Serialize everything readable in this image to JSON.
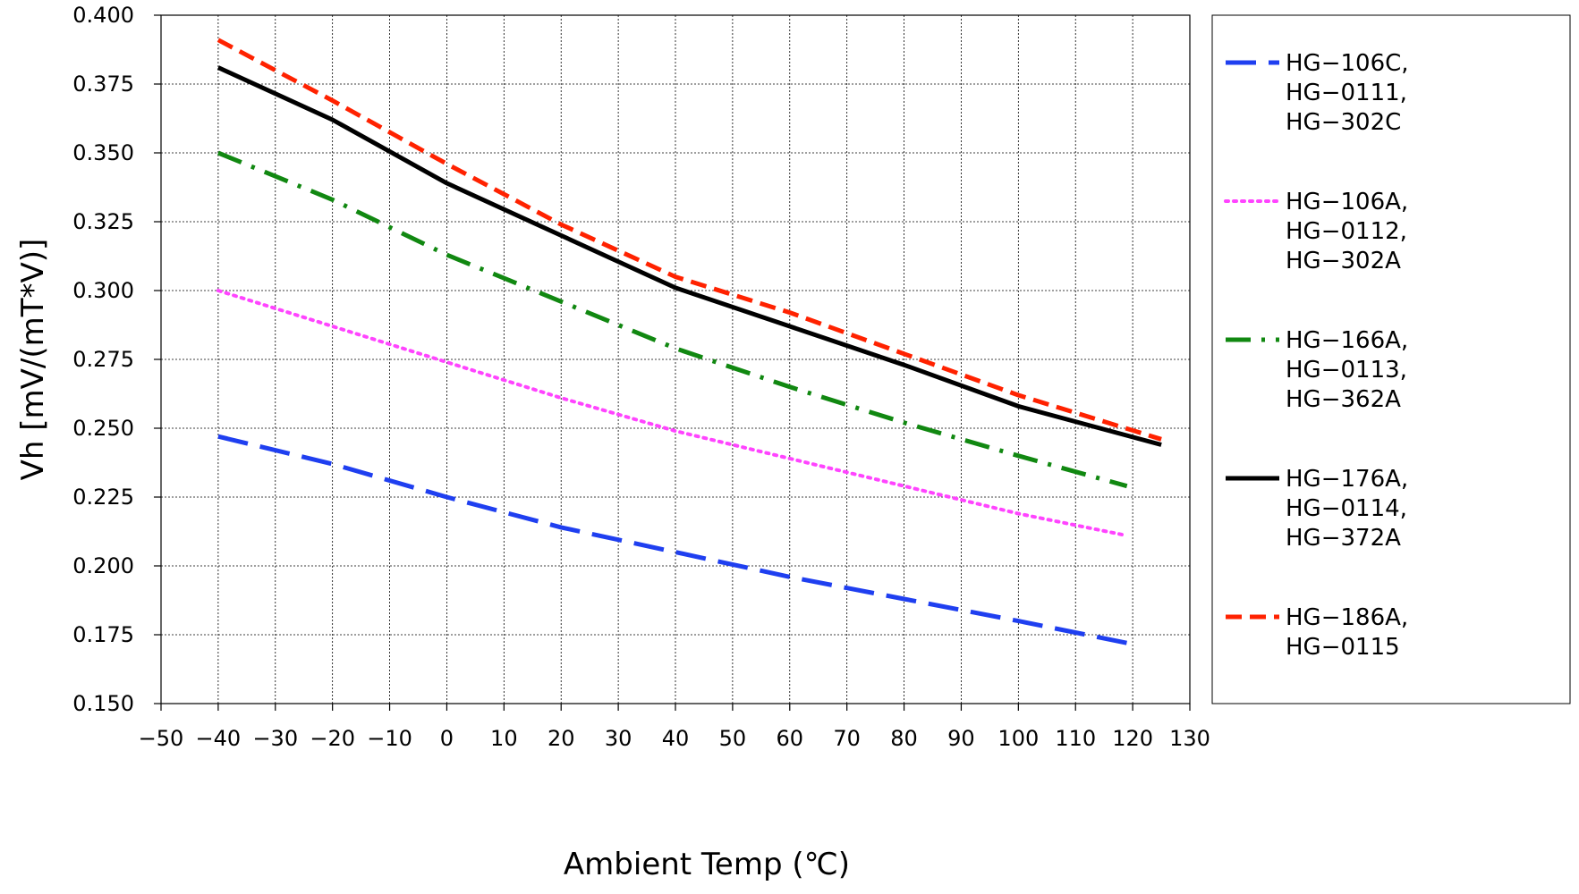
{
  "chart_data": {
    "type": "line",
    "title": "",
    "xlabel": "Ambient Temp (℃)",
    "ylabel": "Vh [mV/(mT*V)]",
    "xlim": [
      -50,
      130
    ],
    "ylim": [
      0.15,
      0.4
    ],
    "x_ticks": [
      -50,
      -40,
      -30,
      -20,
      -10,
      0,
      10,
      20,
      30,
      40,
      50,
      60,
      70,
      80,
      90,
      100,
      110,
      120,
      130
    ],
    "x_tick_labels": [
      "−50",
      "−40",
      "−30",
      "−20",
      "−10",
      "0",
      "10",
      "20",
      "30",
      "40",
      "50",
      "60",
      "70",
      "80",
      "90",
      "100",
      "110",
      "120",
      "130"
    ],
    "y_ticks": [
      0.15,
      0.175,
      0.2,
      0.225,
      0.25,
      0.275,
      0.3,
      0.325,
      0.35,
      0.375,
      0.4
    ],
    "y_tick_labels": [
      "0.150",
      "0.175",
      "0.200",
      "0.225",
      "0.250",
      "0.275",
      "0.300",
      "0.325",
      "0.350",
      "0.375",
      "0.400"
    ],
    "grid": true,
    "legend_position": "right",
    "series": [
      {
        "name": "HG−106C, HG−0111, HG−302C",
        "legend_lines": [
          "HG−106C,",
          "HG−0111,",
          "HG−302C"
        ],
        "color": "#1f3ff0",
        "style": "long-dash",
        "x": [
          -40,
          -20,
          0,
          20,
          40,
          60,
          80,
          100,
          119
        ],
        "y": [
          0.247,
          0.237,
          0.225,
          0.214,
          0.205,
          0.196,
          0.188,
          0.18,
          0.172
        ]
      },
      {
        "name": "HG−106A, HG−0112, HG−302A",
        "legend_lines": [
          "HG−106A,",
          "HG−0112,",
          "HG−302A"
        ],
        "color": "#ff44ff",
        "style": "dotted",
        "x": [
          -40,
          -20,
          0,
          20,
          40,
          60,
          80,
          100,
          119
        ],
        "y": [
          0.3,
          0.287,
          0.274,
          0.261,
          0.249,
          0.239,
          0.229,
          0.219,
          0.211
        ]
      },
      {
        "name": "HG−166A, HG−0113, HG−362A",
        "legend_lines": [
          "HG−166A,",
          "HG−0113,",
          "HG−362A"
        ],
        "color": "#118811",
        "style": "dash-dot",
        "x": [
          -40,
          -20,
          0,
          20,
          40,
          60,
          80,
          100,
          119
        ],
        "y": [
          0.35,
          0.333,
          0.313,
          0.296,
          0.279,
          0.265,
          0.252,
          0.24,
          0.229
        ]
      },
      {
        "name": "HG−176A, HG−0114, HG−372A",
        "legend_lines": [
          "HG−176A,",
          "HG−0114,",
          "HG−372A"
        ],
        "color": "#000000",
        "style": "solid",
        "x": [
          -40,
          -20,
          0,
          20,
          40,
          60,
          80,
          100,
          125
        ],
        "y": [
          0.381,
          0.362,
          0.339,
          0.32,
          0.301,
          0.287,
          0.273,
          0.258,
          0.244
        ]
      },
      {
        "name": "HG−186A, HG−0115",
        "legend_lines": [
          "HG−186A,",
          "HG−0115"
        ],
        "color": "#ff2200",
        "style": "short-dash",
        "x": [
          -40,
          -20,
          0,
          20,
          40,
          60,
          80,
          100,
          125
        ],
        "y": [
          0.391,
          0.369,
          0.346,
          0.324,
          0.305,
          0.292,
          0.277,
          0.262,
          0.246
        ]
      }
    ]
  }
}
